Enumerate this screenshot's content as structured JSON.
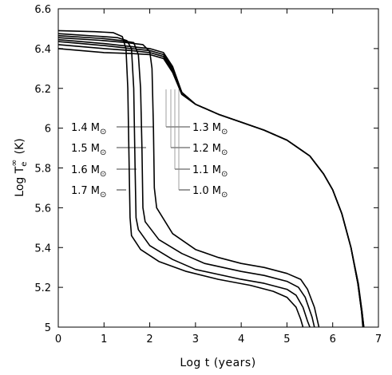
{
  "chart_data": {
    "type": "line",
    "title": "",
    "xlabel": "Log t (years)",
    "ylabel": {
      "main": "Log T",
      "sub": "e",
      "sup": "∞",
      "unit": "(K)"
    },
    "xlim": [
      0,
      7
    ],
    "ylim": [
      5,
      6.6
    ],
    "xticks": [
      0,
      1,
      2,
      3,
      4,
      5,
      6,
      7
    ],
    "yticks": [
      5,
      5.2,
      5.4,
      5.6,
      5.8,
      6,
      6.2,
      6.4,
      6.6
    ],
    "grid": false,
    "mass_symbol": "M",
    "sun_symbol": "⊙",
    "series": [
      {
        "name": "1.0",
        "points": [
          [
            0,
            6.4
          ],
          [
            1.0,
            6.38
          ],
          [
            1.6,
            6.375
          ],
          [
            2.0,
            6.37
          ],
          [
            2.3,
            6.35
          ],
          [
            2.5,
            6.28
          ],
          [
            2.7,
            6.17
          ],
          [
            3.0,
            6.12
          ],
          [
            3.5,
            6.07
          ],
          [
            4.0,
            6.03
          ],
          [
            4.5,
            5.99
          ],
          [
            5.0,
            5.94
          ],
          [
            5.5,
            5.86
          ],
          [
            5.8,
            5.77
          ],
          [
            6.0,
            5.69
          ],
          [
            6.2,
            5.57
          ],
          [
            6.4,
            5.4
          ],
          [
            6.55,
            5.22
          ],
          [
            6.63,
            5.08
          ],
          [
            6.66,
            5.0
          ]
        ]
      },
      {
        "name": "1.1",
        "points": [
          [
            0,
            6.42
          ],
          [
            1.0,
            6.4
          ],
          [
            1.6,
            6.39
          ],
          [
            2.0,
            6.38
          ],
          [
            2.3,
            6.36
          ],
          [
            2.5,
            6.29
          ],
          [
            2.7,
            6.17
          ],
          [
            3.0,
            6.12
          ],
          [
            3.5,
            6.07
          ],
          [
            4.0,
            6.03
          ],
          [
            4.5,
            5.99
          ],
          [
            5.0,
            5.94
          ],
          [
            5.5,
            5.86
          ],
          [
            5.8,
            5.77
          ],
          [
            6.0,
            5.69
          ],
          [
            6.2,
            5.57
          ],
          [
            6.4,
            5.4
          ],
          [
            6.55,
            5.22
          ],
          [
            6.63,
            5.08
          ],
          [
            6.67,
            5.0
          ]
        ]
      },
      {
        "name": "1.2",
        "points": [
          [
            0,
            6.435
          ],
          [
            1.0,
            6.415
          ],
          [
            1.6,
            6.4
          ],
          [
            2.0,
            6.39
          ],
          [
            2.3,
            6.37
          ],
          [
            2.5,
            6.3
          ],
          [
            2.7,
            6.18
          ],
          [
            3.0,
            6.12
          ],
          [
            3.5,
            6.07
          ],
          [
            4.0,
            6.03
          ],
          [
            4.5,
            5.99
          ],
          [
            5.0,
            5.94
          ],
          [
            5.5,
            5.86
          ],
          [
            5.8,
            5.77
          ],
          [
            6.0,
            5.69
          ],
          [
            6.2,
            5.57
          ],
          [
            6.4,
            5.4
          ],
          [
            6.55,
            5.22
          ],
          [
            6.64,
            5.08
          ],
          [
            6.68,
            5.0
          ]
        ]
      },
      {
        "name": "1.3",
        "points": [
          [
            0,
            6.445
          ],
          [
            1.0,
            6.425
          ],
          [
            1.6,
            6.41
          ],
          [
            2.0,
            6.4
          ],
          [
            2.3,
            6.38
          ],
          [
            2.5,
            6.31
          ],
          [
            2.7,
            6.18
          ],
          [
            3.0,
            6.12
          ],
          [
            3.5,
            6.07
          ],
          [
            4.0,
            6.03
          ],
          [
            4.5,
            5.99
          ],
          [
            5.0,
            5.94
          ],
          [
            5.5,
            5.86
          ],
          [
            5.8,
            5.77
          ],
          [
            6.0,
            5.69
          ],
          [
            6.2,
            5.57
          ],
          [
            6.4,
            5.4
          ],
          [
            6.56,
            5.22
          ],
          [
            6.64,
            5.08
          ],
          [
            6.68,
            5.0
          ]
        ]
      },
      {
        "name": "1.4",
        "points": [
          [
            0,
            6.455
          ],
          [
            1.0,
            6.44
          ],
          [
            1.5,
            6.43
          ],
          [
            1.85,
            6.42
          ],
          [
            2.0,
            6.385
          ],
          [
            2.05,
            6.3
          ],
          [
            2.08,
            6.0
          ],
          [
            2.1,
            5.7
          ],
          [
            2.15,
            5.6
          ],
          [
            2.5,
            5.47
          ],
          [
            3.0,
            5.39
          ],
          [
            3.5,
            5.35
          ],
          [
            4.0,
            5.32
          ],
          [
            4.5,
            5.3
          ],
          [
            5.0,
            5.27
          ],
          [
            5.3,
            5.24
          ],
          [
            5.45,
            5.19
          ],
          [
            5.6,
            5.1
          ],
          [
            5.7,
            5.0
          ]
        ]
      },
      {
        "name": "1.5",
        "points": [
          [
            0,
            6.465
          ],
          [
            1.0,
            6.45
          ],
          [
            1.4,
            6.44
          ],
          [
            1.65,
            6.43
          ],
          [
            1.75,
            6.37
          ],
          [
            1.8,
            6.2
          ],
          [
            1.83,
            5.9
          ],
          [
            1.85,
            5.6
          ],
          [
            1.9,
            5.53
          ],
          [
            2.2,
            5.44
          ],
          [
            2.7,
            5.37
          ],
          [
            3.2,
            5.32
          ],
          [
            4.0,
            5.28
          ],
          [
            4.5,
            5.26
          ],
          [
            5.0,
            5.23
          ],
          [
            5.25,
            5.2
          ],
          [
            5.4,
            5.15
          ],
          [
            5.55,
            5.05
          ],
          [
            5.6,
            5.0
          ]
        ]
      },
      {
        "name": "1.6",
        "points": [
          [
            0,
            6.475
          ],
          [
            1.0,
            6.46
          ],
          [
            1.3,
            6.455
          ],
          [
            1.5,
            6.44
          ],
          [
            1.6,
            6.4
          ],
          [
            1.65,
            6.2
          ],
          [
            1.68,
            5.8
          ],
          [
            1.7,
            5.55
          ],
          [
            1.75,
            5.49
          ],
          [
            2.0,
            5.41
          ],
          [
            2.5,
            5.34
          ],
          [
            3.0,
            5.29
          ],
          [
            4.0,
            5.24
          ],
          [
            4.5,
            5.22
          ],
          [
            5.0,
            5.19
          ],
          [
            5.2,
            5.16
          ],
          [
            5.35,
            5.1
          ],
          [
            5.45,
            5.03
          ],
          [
            5.5,
            5.0
          ]
        ]
      },
      {
        "name": "1.7",
        "points": [
          [
            0,
            6.49
          ],
          [
            0.8,
            6.485
          ],
          [
            1.2,
            6.48
          ],
          [
            1.4,
            6.46
          ],
          [
            1.48,
            6.4
          ],
          [
            1.52,
            6.2
          ],
          [
            1.55,
            5.8
          ],
          [
            1.57,
            5.55
          ],
          [
            1.6,
            5.46
          ],
          [
            1.8,
            5.39
          ],
          [
            2.2,
            5.33
          ],
          [
            2.8,
            5.28
          ],
          [
            3.5,
            5.24
          ],
          [
            4.2,
            5.21
          ],
          [
            4.7,
            5.18
          ],
          [
            5.0,
            5.15
          ],
          [
            5.2,
            5.1
          ],
          [
            5.3,
            5.04
          ],
          [
            5.35,
            5.0
          ]
        ]
      }
    ],
    "annotations": [
      {
        "mass": "1.4",
        "side": "left"
      },
      {
        "mass": "1.5",
        "side": "left"
      },
      {
        "mass": "1.6",
        "side": "left"
      },
      {
        "mass": "1.7",
        "side": "left"
      },
      {
        "mass": "1.3",
        "side": "right"
      },
      {
        "mass": "1.2",
        "side": "right"
      },
      {
        "mass": "1.1",
        "side": "right"
      },
      {
        "mass": "1.0",
        "side": "right"
      }
    ]
  }
}
